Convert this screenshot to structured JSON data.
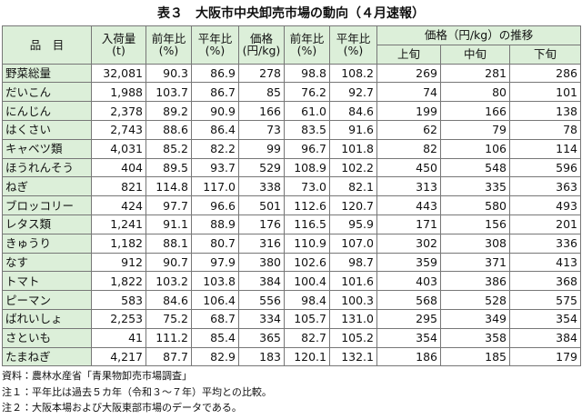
{
  "title": "表３　大阪市中央卸売市場の動向（４月速報）",
  "table": {
    "header": [
      "品　目",
      "入荷量\n(t)",
      "前年比\n(%)",
      "平年比\n(%)",
      "価格\n(円/kg)",
      "前年比\n(%)",
      "平年比\n(%)",
      "価格（円/kg）の推移"
    ],
    "subheader": [
      "上旬",
      "中旬",
      "下旬"
    ],
    "rows": [
      [
        "野菜総量",
        "32,081",
        "90.3",
        "86.9",
        "278",
        "98.8",
        "108.2",
        "269",
        "281",
        "286"
      ],
      [
        "だいこん",
        "1,988",
        "103.7",
        "86.7",
        "85",
        "76.2",
        "92.7",
        "74",
        "80",
        "101"
      ],
      [
        "にんじん",
        "2,378",
        "89.2",
        "90.9",
        "166",
        "61.0",
        "84.6",
        "199",
        "166",
        "138"
      ],
      [
        "はくさい",
        "2,743",
        "88.6",
        "86.4",
        "73",
        "83.5",
        "91.6",
        "62",
        "79",
        "78"
      ],
      [
        "キャベツ類",
        "4,031",
        "85.2",
        "82.2",
        "99",
        "96.7",
        "101.8",
        "82",
        "106",
        "114"
      ],
      [
        "ほうれんそう",
        "404",
        "89.5",
        "93.7",
        "529",
        "108.9",
        "102.2",
        "450",
        "548",
        "596"
      ],
      [
        "ねぎ",
        "821",
        "114.8",
        "117.0",
        "338",
        "73.0",
        "82.1",
        "313",
        "335",
        "363"
      ],
      [
        "ブロッコリー",
        "424",
        "97.7",
        "96.6",
        "501",
        "112.6",
        "120.7",
        "443",
        "580",
        "493"
      ],
      [
        "レタス類",
        "1,241",
        "91.1",
        "88.9",
        "176",
        "116.5",
        "95.9",
        "171",
        "156",
        "201"
      ],
      [
        "きゅうり",
        "1,182",
        "88.1",
        "80.7",
        "316",
        "110.9",
        "107.0",
        "302",
        "308",
        "336"
      ],
      [
        "なす",
        "912",
        "90.7",
        "97.9",
        "380",
        "102.6",
        "98.7",
        "359",
        "371",
        "413"
      ],
      [
        "トマト",
        "1,822",
        "103.2",
        "103.8",
        "384",
        "100.4",
        "101.6",
        "403",
        "386",
        "368"
      ],
      [
        "ピーマン",
        "583",
        "84.6",
        "106.4",
        "556",
        "98.4",
        "100.3",
        "568",
        "528",
        "575"
      ],
      [
        "ばれいしょ",
        "2,253",
        "75.2",
        "68.7",
        "334",
        "105.7",
        "131.0",
        "295",
        "349",
        "354"
      ],
      [
        "さといも",
        "41",
        "111.2",
        "85.4",
        "365",
        "82.7",
        "105.2",
        "354",
        "358",
        "384"
      ],
      [
        "たまねぎ",
        "4,217",
        "87.7",
        "82.9",
        "183",
        "120.1",
        "132.1",
        "186",
        "185",
        "179"
      ]
    ]
  },
  "notes": [
    "資料：農林水産省「青果物卸売市場調査」",
    "注１：平年比は過去５カ年（令和３～７年）平均との比較。",
    "注２：大阪本場および大阪東部市場のデータである。"
  ]
}
